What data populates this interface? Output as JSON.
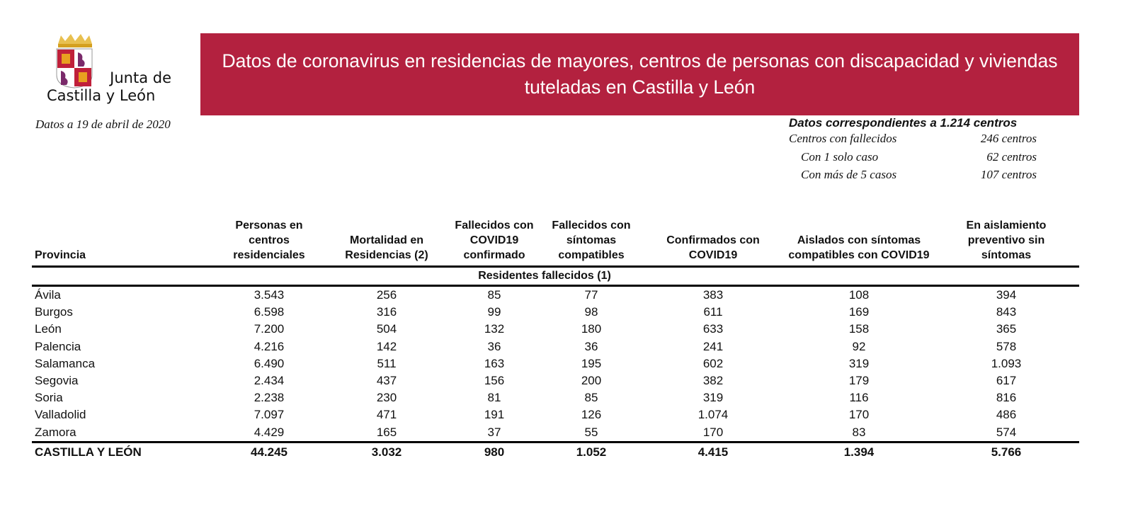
{
  "logo": {
    "line1": "Junta de",
    "line2": "Castilla y León"
  },
  "title": "Datos de coronavirus en residencias de mayores, centros de personas con discapacidad y viviendas tuteladas en Castilla y León",
  "date_note": "Datos a 19 de abril de 2020",
  "summary": {
    "heading": "Datos correspondientes a 1.214 centros",
    "rows": [
      {
        "label": "Centros con fallecidos",
        "value": "246 centros"
      },
      {
        "label": "Con 1 solo caso",
        "value": "62 centros"
      },
      {
        "label": "Con más de 5 casos",
        "value": "107 centros"
      }
    ]
  },
  "table": {
    "headers": [
      "Provincia",
      "Personas en centros residenciales",
      "Mortalidad en Residencias (2)",
      "Fallecidos con COVID19 confirmado",
      "Fallecidos con síntomas compatibles",
      "Confirmados con COVID19",
      "Aislados con síntomas compatibles con COVID19",
      "En aislamiento preventivo sin síntomas"
    ],
    "group_header": "Residentes fallecidos (1)",
    "rows": [
      [
        "Ávila",
        "3.543",
        "256",
        "85",
        "77",
        "383",
        "108",
        "394"
      ],
      [
        "Burgos",
        "6.598",
        "316",
        "99",
        "98",
        "611",
        "169",
        "843"
      ],
      [
        "León",
        "7.200",
        "504",
        "132",
        "180",
        "633",
        "158",
        "365"
      ],
      [
        "Palencia",
        "4.216",
        "142",
        "36",
        "36",
        "241",
        "92",
        "578"
      ],
      [
        "Salamanca",
        "6.490",
        "511",
        "163",
        "195",
        "602",
        "319",
        "1.093"
      ],
      [
        "Segovia",
        "2.434",
        "437",
        "156",
        "200",
        "382",
        "179",
        "617"
      ],
      [
        "Soria",
        "2.238",
        "230",
        "81",
        "85",
        "319",
        "116",
        "816"
      ],
      [
        "Valladolid",
        "7.097",
        "471",
        "191",
        "126",
        "1.074",
        "170",
        "486"
      ],
      [
        "Zamora",
        "4.429",
        "165",
        "37",
        "55",
        "170",
        "83",
        "574"
      ]
    ],
    "total": [
      "CASTILLA Y LEÓN",
      "44.245",
      "3.032",
      "980",
      "1.052",
      "4.415",
      "1.394",
      "5.766"
    ]
  },
  "colors": {
    "banner": "#b3213f",
    "shield_red": "#c0203a",
    "shield_gold": "#e8a020",
    "lion_purple": "#7a2a6a"
  }
}
